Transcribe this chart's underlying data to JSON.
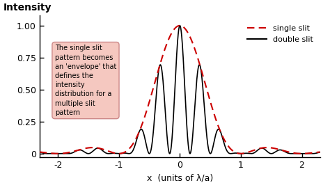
{
  "xlabel": "x  (units of λ/a)",
  "ylabel": "Intensity",
  "xlim": [
    -2.3,
    2.3
  ],
  "ylim": [
    -0.03,
    1.08
  ],
  "xticks": [
    -2,
    -1,
    0,
    1,
    2
  ],
  "ytick_vals": [
    0,
    0.25,
    0.5,
    0.75,
    1.0
  ],
  "ytick_labels": [
    "0",
    "0.25",
    "0.50",
    "0.75",
    "1.00"
  ],
  "single_slit_color": "#cc0000",
  "double_slit_color": "#000000",
  "annotation_text": "The single slit\npattern becomes\nan 'envelope' that\ndefines the\nintensity\ndistribution for a\nmultiple slit\npattern",
  "annotation_bg": "#f5c8c0",
  "annotation_edge": "#cc8888",
  "legend_single": "single slit",
  "legend_double": "double slit",
  "d_over_a": 3.0,
  "figsize": [
    4.74,
    2.76
  ],
  "dpi": 100
}
